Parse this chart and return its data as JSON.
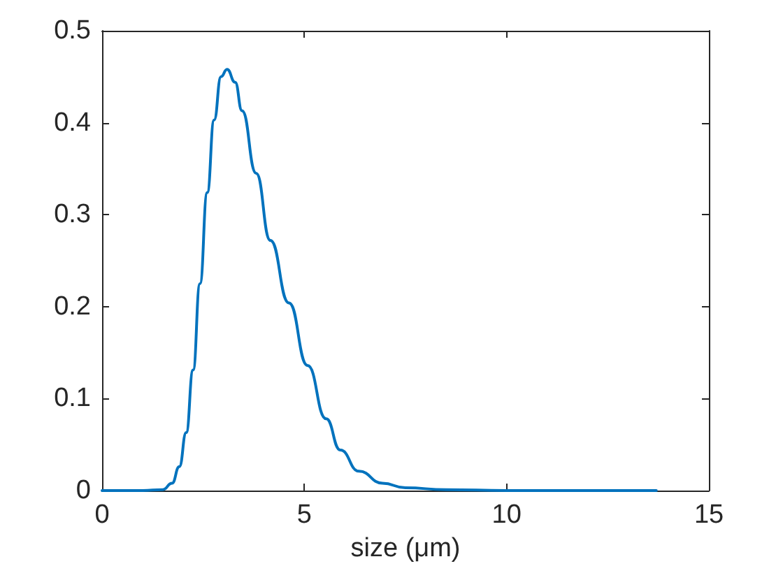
{
  "chart_data": {
    "type": "line",
    "xlabel": "size (μm)",
    "x": [
      0,
      1,
      1.5,
      1.73,
      1.91,
      2.08,
      2.25,
      2.42,
      2.6,
      2.77,
      2.94,
      3.09,
      3.29,
      3.46,
      3.81,
      4.16,
      4.62,
      5.08,
      5.54,
      5.89,
      6.35,
      6.93,
      7.5,
      8.5,
      10,
      12,
      13.7
    ],
    "series": [
      {
        "color": "#0072bd",
        "values": [
          0,
          0,
          0.001,
          0.008,
          0.026,
          0.063,
          0.131,
          0.225,
          0.324,
          0.403,
          0.45,
          0.458,
          0.444,
          0.413,
          0.345,
          0.272,
          0.204,
          0.136,
          0.078,
          0.044,
          0.021,
          0.008,
          0.003,
          0.001,
          0,
          0,
          0
        ]
      }
    ],
    "xlim": [
      0,
      15
    ],
    "xticks": [
      0,
      5,
      10,
      15
    ],
    "ylim": [
      0,
      0.5
    ],
    "yticks": [
      0,
      0.1,
      0.2,
      0.3,
      0.4,
      0.5
    ],
    "grid": false,
    "marker": "none",
    "line_style": "solid"
  }
}
